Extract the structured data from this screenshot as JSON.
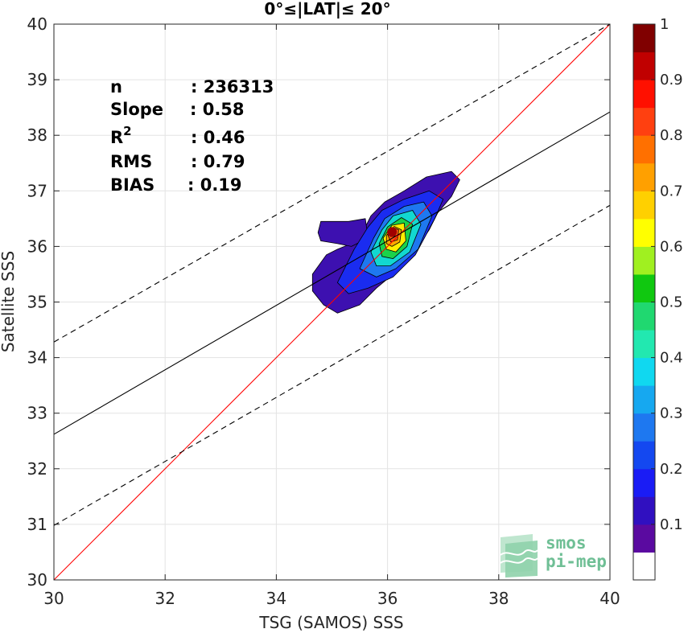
{
  "chart_data": {
    "type": "heatmap",
    "title": "0°≤|LAT|≤ 20°",
    "xlabel": "TSG (SAMOS) SSS",
    "ylabel": "Satellite SSS",
    "xlim": [
      30,
      40
    ],
    "ylim": [
      30,
      40
    ],
    "xticks": [
      "30",
      "32",
      "34",
      "36",
      "38",
      "40"
    ],
    "yticks": [
      "30",
      "31",
      "32",
      "33",
      "34",
      "35",
      "36",
      "37",
      "38",
      "39",
      "40"
    ],
    "grid": true,
    "stats": [
      {
        "label": "n",
        "value": ": 236313"
      },
      {
        "label": "Slope",
        "value": ": 0.58"
      },
      {
        "label": "R",
        "sup": "2",
        "value": ": 0.46"
      },
      {
        "label": "RMS",
        "value": ": 0.79"
      },
      {
        "label": "BIAS",
        "value": ": 0.19"
      }
    ],
    "lines": [
      {
        "name": "identity",
        "color": "#ff0000",
        "style": "solid",
        "points": [
          [
            30,
            30
          ],
          [
            40,
            40
          ]
        ]
      },
      {
        "name": "regression",
        "color": "#000000",
        "style": "solid",
        "points": [
          [
            30,
            32.62
          ],
          [
            40,
            38.42
          ]
        ]
      },
      {
        "name": "upper-bound",
        "color": "#000000",
        "style": "dashed",
        "points": [
          [
            30,
            34.28
          ],
          [
            40,
            40.0
          ]
        ]
      },
      {
        "name": "lower-bound",
        "color": "#000000",
        "style": "dashed",
        "points": [
          [
            30,
            30.98
          ],
          [
            40,
            36.74
          ]
        ]
      }
    ],
    "density_peak": {
      "x": 36.08,
      "y": 36.26
    },
    "density_contours": [
      {
        "level": 0.05,
        "color": "#3d10b0",
        "points": [
          [
            34.65,
            35.5
          ],
          [
            34.9,
            35.85
          ],
          [
            35.1,
            35.95
          ],
          [
            35.35,
            36.05
          ],
          [
            35.55,
            36.25
          ],
          [
            35.7,
            36.55
          ],
          [
            35.95,
            36.8
          ],
          [
            36.3,
            37.0
          ],
          [
            36.7,
            37.25
          ],
          [
            37.15,
            37.35
          ],
          [
            37.3,
            37.2
          ],
          [
            37.15,
            36.9
          ],
          [
            36.9,
            36.6
          ],
          [
            36.75,
            36.3
          ],
          [
            36.45,
            35.85
          ],
          [
            36.1,
            35.5
          ],
          [
            35.8,
            35.25
          ],
          [
            35.5,
            34.95
          ],
          [
            35.1,
            34.8
          ],
          [
            34.85,
            34.95
          ],
          [
            34.65,
            35.2
          ]
        ]
      },
      {
        "level": 0.05,
        "color": "#3d10b0",
        "points": [
          [
            34.8,
            36.45
          ],
          [
            35.3,
            36.45
          ],
          [
            35.6,
            36.5
          ],
          [
            35.65,
            36.15
          ],
          [
            35.35,
            36.0
          ],
          [
            35.1,
            36.05
          ],
          [
            34.8,
            36.1
          ],
          [
            34.75,
            36.25
          ]
        ]
      },
      {
        "level": 0.2,
        "color": "#1a2cf0",
        "points": [
          [
            35.1,
            35.35
          ],
          [
            35.4,
            35.95
          ],
          [
            35.65,
            36.35
          ],
          [
            35.9,
            36.65
          ],
          [
            36.3,
            36.85
          ],
          [
            36.75,
            37.0
          ],
          [
            37.0,
            36.85
          ],
          [
            36.85,
            36.5
          ],
          [
            36.5,
            35.85
          ],
          [
            36.1,
            35.45
          ],
          [
            35.65,
            35.25
          ],
          [
            35.3,
            35.15
          ]
        ]
      },
      {
        "level": 0.3,
        "color": "#1e78f0",
        "points": [
          [
            35.5,
            35.6
          ],
          [
            35.75,
            36.15
          ],
          [
            35.95,
            36.5
          ],
          [
            36.3,
            36.72
          ],
          [
            36.65,
            36.8
          ],
          [
            36.8,
            36.55
          ],
          [
            36.55,
            35.95
          ],
          [
            36.15,
            35.6
          ],
          [
            35.8,
            35.45
          ]
        ]
      },
      {
        "level": 0.4,
        "color": "#12d8d0",
        "points": [
          [
            35.7,
            35.9
          ],
          [
            35.9,
            36.3
          ],
          [
            36.1,
            36.55
          ],
          [
            36.45,
            36.65
          ],
          [
            36.6,
            36.4
          ],
          [
            36.4,
            35.9
          ],
          [
            36.05,
            35.65
          ],
          [
            35.8,
            35.65
          ]
        ]
      },
      {
        "level": 0.5,
        "color": "#1ad24a",
        "points": [
          [
            35.85,
            36.05
          ],
          [
            36.0,
            36.35
          ],
          [
            36.25,
            36.52
          ],
          [
            36.45,
            36.4
          ],
          [
            36.35,
            36.0
          ],
          [
            36.1,
            35.78
          ],
          [
            35.9,
            35.82
          ]
        ]
      },
      {
        "level": 0.6,
        "color": "#ffee00",
        "points": [
          [
            35.92,
            36.15
          ],
          [
            36.08,
            36.38
          ],
          [
            36.3,
            36.42
          ],
          [
            36.33,
            36.1
          ],
          [
            36.15,
            35.9
          ],
          [
            35.98,
            35.95
          ]
        ]
      },
      {
        "level": 0.7,
        "color": "#ffa800",
        "points": [
          [
            35.98,
            36.2
          ],
          [
            36.12,
            36.36
          ],
          [
            36.25,
            36.3
          ],
          [
            36.22,
            36.08
          ],
          [
            36.08,
            36.0
          ],
          [
            35.98,
            36.05
          ]
        ]
      },
      {
        "level": 0.8,
        "color": "#ff5a10",
        "points": [
          [
            36.0,
            36.22
          ],
          [
            36.1,
            36.34
          ],
          [
            36.2,
            36.3
          ],
          [
            36.18,
            36.12
          ],
          [
            36.06,
            36.08
          ]
        ]
      },
      {
        "level": 0.9,
        "color": "#e00000",
        "points": [
          [
            36.02,
            36.24
          ],
          [
            36.08,
            36.32
          ],
          [
            36.16,
            36.28
          ],
          [
            36.13,
            36.18
          ],
          [
            36.05,
            36.18
          ]
        ]
      }
    ],
    "colorbar": {
      "range": [
        0,
        1
      ],
      "ticks": [
        "0.1",
        "0.2",
        "0.3",
        "0.4",
        "0.5",
        "0.6",
        "0.7",
        "0.8",
        "0.9",
        "1"
      ],
      "colors": [
        "#ffffff",
        "#5a0aa0",
        "#3010c0",
        "#1a1cf5",
        "#1448f0",
        "#1e78f0",
        "#16a8f0",
        "#10d8f0",
        "#22e8b0",
        "#20d870",
        "#10c810",
        "#a0f020",
        "#ffff00",
        "#ffd000",
        "#ffa000",
        "#ff7000",
        "#ff4010",
        "#ff1000",
        "#c00000",
        "#800000"
      ]
    },
    "logo": {
      "line1": "smos",
      "line2": "pi-mep"
    }
  }
}
